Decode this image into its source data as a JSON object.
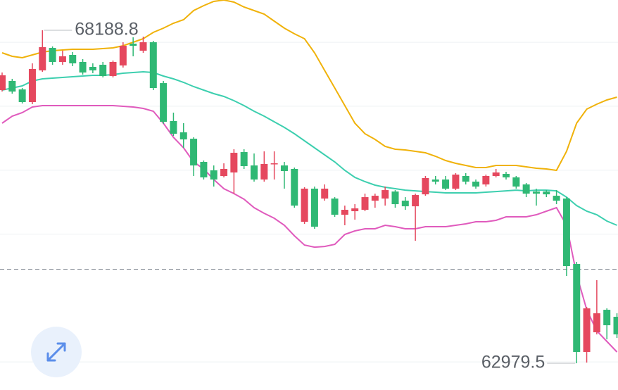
{
  "chart_data": {
    "type": "candlestick",
    "up_color": "#e5485e",
    "down_color": "#2fb874",
    "ylim": [
      62561,
      68662
    ],
    "gridlines": [
      63000,
      65000,
      66000,
      67000,
      68000
    ],
    "price_line": 64450,
    "open": [
      67252,
      67396,
      67263,
      67065,
      67561,
      67913,
      67693,
      67803,
      67693,
      67616,
      67649,
      67473,
      67638,
      67979,
      67869,
      68001,
      67362,
      66768,
      66592,
      66492,
      66129,
      65997,
      65909,
      65964,
      66283,
      66074,
      65854,
      66096,
      66074,
      66019,
      65193,
      65711,
      65556,
      65556,
      65303,
      65358,
      65380,
      65523,
      65556,
      65666,
      65523,
      65435,
      65622,
      65854,
      65854,
      65711,
      65909,
      65821,
      65777,
      65909,
      65942,
      65887,
      65777,
      65666,
      65666,
      65600,
      65556,
      64532,
      63156,
      63464,
      63816,
      63706
    ],
    "high": [
      67528,
      67429,
      67285,
      67671,
      68188.8,
      67935,
      67869,
      67847,
      67737,
      67671,
      67693,
      67715,
      68001,
      68078,
      68089,
      68023,
      67396,
      66900,
      66735,
      66514,
      66151,
      66074,
      66107,
      66327,
      66327,
      66261,
      66294,
      66294,
      66129,
      66041,
      65733,
      65744,
      65777,
      65578,
      65446,
      65468,
      65633,
      65633,
      65744,
      65688,
      65578,
      65633,
      65909,
      65909,
      65909,
      65953,
      65953,
      65854,
      65931,
      66019,
      65975,
      65909,
      65799,
      65711,
      65688,
      65688,
      65578,
      64565,
      63860,
      64279,
      63838,
      63761
    ],
    "low": [
      67230,
      67197,
      67043,
      67032,
      67539,
      67649,
      67649,
      67627,
      67495,
      67517,
      67451,
      67451,
      67605,
      67781,
      67836,
      67252,
      66724,
      66536,
      66349,
      65909,
      65854,
      65744,
      65887,
      65633,
      66019,
      65821,
      65821,
      65854,
      65711,
      65413,
      65160,
      65083,
      65523,
      65270,
      65138,
      65226,
      65358,
      65413,
      65446,
      65413,
      65380,
      64896,
      65600,
      65777,
      65688,
      65688,
      65777,
      65711,
      65744,
      65887,
      65854,
      65711,
      65578,
      65446,
      65578,
      65468,
      64345,
      62979.5,
      62990,
      63431,
      63354,
      63376
    ],
    "close": [
      67484,
      67230,
      67065,
      67583,
      67924,
      67693,
      67781,
      67671,
      67528,
      67561,
      67473,
      67693,
      67946,
      67946,
      68001,
      67285,
      66757,
      66570,
      66481,
      66074,
      65887,
      65854,
      66019,
      66272,
      66063,
      65854,
      66096,
      66107,
      65986,
      65446,
      65711,
      65116,
      65711,
      65303,
      65380,
      65402,
      65578,
      65600,
      65688,
      65468,
      65435,
      65611,
      65876,
      65821,
      65711,
      65931,
      65821,
      65744,
      65909,
      65964,
      65887,
      65744,
      65633,
      65633,
      65622,
      65523,
      64499,
      63156,
      63838,
      63761,
      63574,
      63431
    ],
    "bands": [
      {
        "color": "#f0b20a",
        "values": [
          67836,
          67781,
          67759,
          67803,
          67847,
          67869,
          67880,
          67891,
          67891,
          67891,
          67902,
          67913,
          67946,
          68001,
          68056,
          68155,
          68221,
          68299,
          68354,
          68497,
          68574,
          68640,
          68662,
          68629,
          68552,
          68497,
          68442,
          68332,
          68221,
          68133,
          68056,
          67836,
          67561,
          67285,
          67010,
          66735,
          66570,
          66481,
          66371,
          66327,
          66316,
          66294,
          66272,
          66217,
          66151,
          66107,
          66074,
          66041,
          66041,
          66074,
          66074,
          66074,
          66052,
          66030,
          66019,
          65997,
          66294,
          66735,
          66955,
          67032,
          67098,
          67142
        ]
      },
      {
        "color": "#3dcfaf",
        "values": [
          67252,
          67285,
          67318,
          67396,
          67429,
          67440,
          67451,
          67462,
          67473,
          67484,
          67484,
          67495,
          67517,
          67528,
          67539,
          67528,
          67473,
          67429,
          67373,
          67307,
          67252,
          67197,
          67153,
          67087,
          67010,
          66922,
          66845,
          66757,
          66669,
          66570,
          66459,
          66349,
          66239,
          66129,
          65997,
          65887,
          65821,
          65766,
          65733,
          65711,
          65688,
          65677,
          65666,
          65655,
          65644,
          65644,
          65644,
          65644,
          65655,
          65666,
          65677,
          65688,
          65677,
          65688,
          65688,
          65677,
          65578,
          65446,
          65358,
          65303,
          65204,
          65138
        ]
      },
      {
        "color": "#e05bbd",
        "values": [
          66735,
          66845,
          66900,
          66988,
          67010,
          67010,
          67010,
          67010,
          67010,
          67010,
          67010,
          67010,
          66999,
          66988,
          66966,
          66922,
          66735,
          66514,
          66349,
          66129,
          66019,
          65854,
          65711,
          65633,
          65545,
          65413,
          65325,
          65248,
          65138,
          64973,
          64829,
          64796,
          64807,
          64840,
          64995,
          65050,
          65083,
          65083,
          65138,
          65116,
          65083,
          65083,
          65116,
          65116,
          65116,
          65138,
          65160,
          65193,
          65193,
          65215,
          65270,
          65270,
          65270,
          65303,
          65358,
          65413,
          65138,
          64367,
          63816,
          63486,
          63321,
          63156
        ]
      }
    ]
  }
}
